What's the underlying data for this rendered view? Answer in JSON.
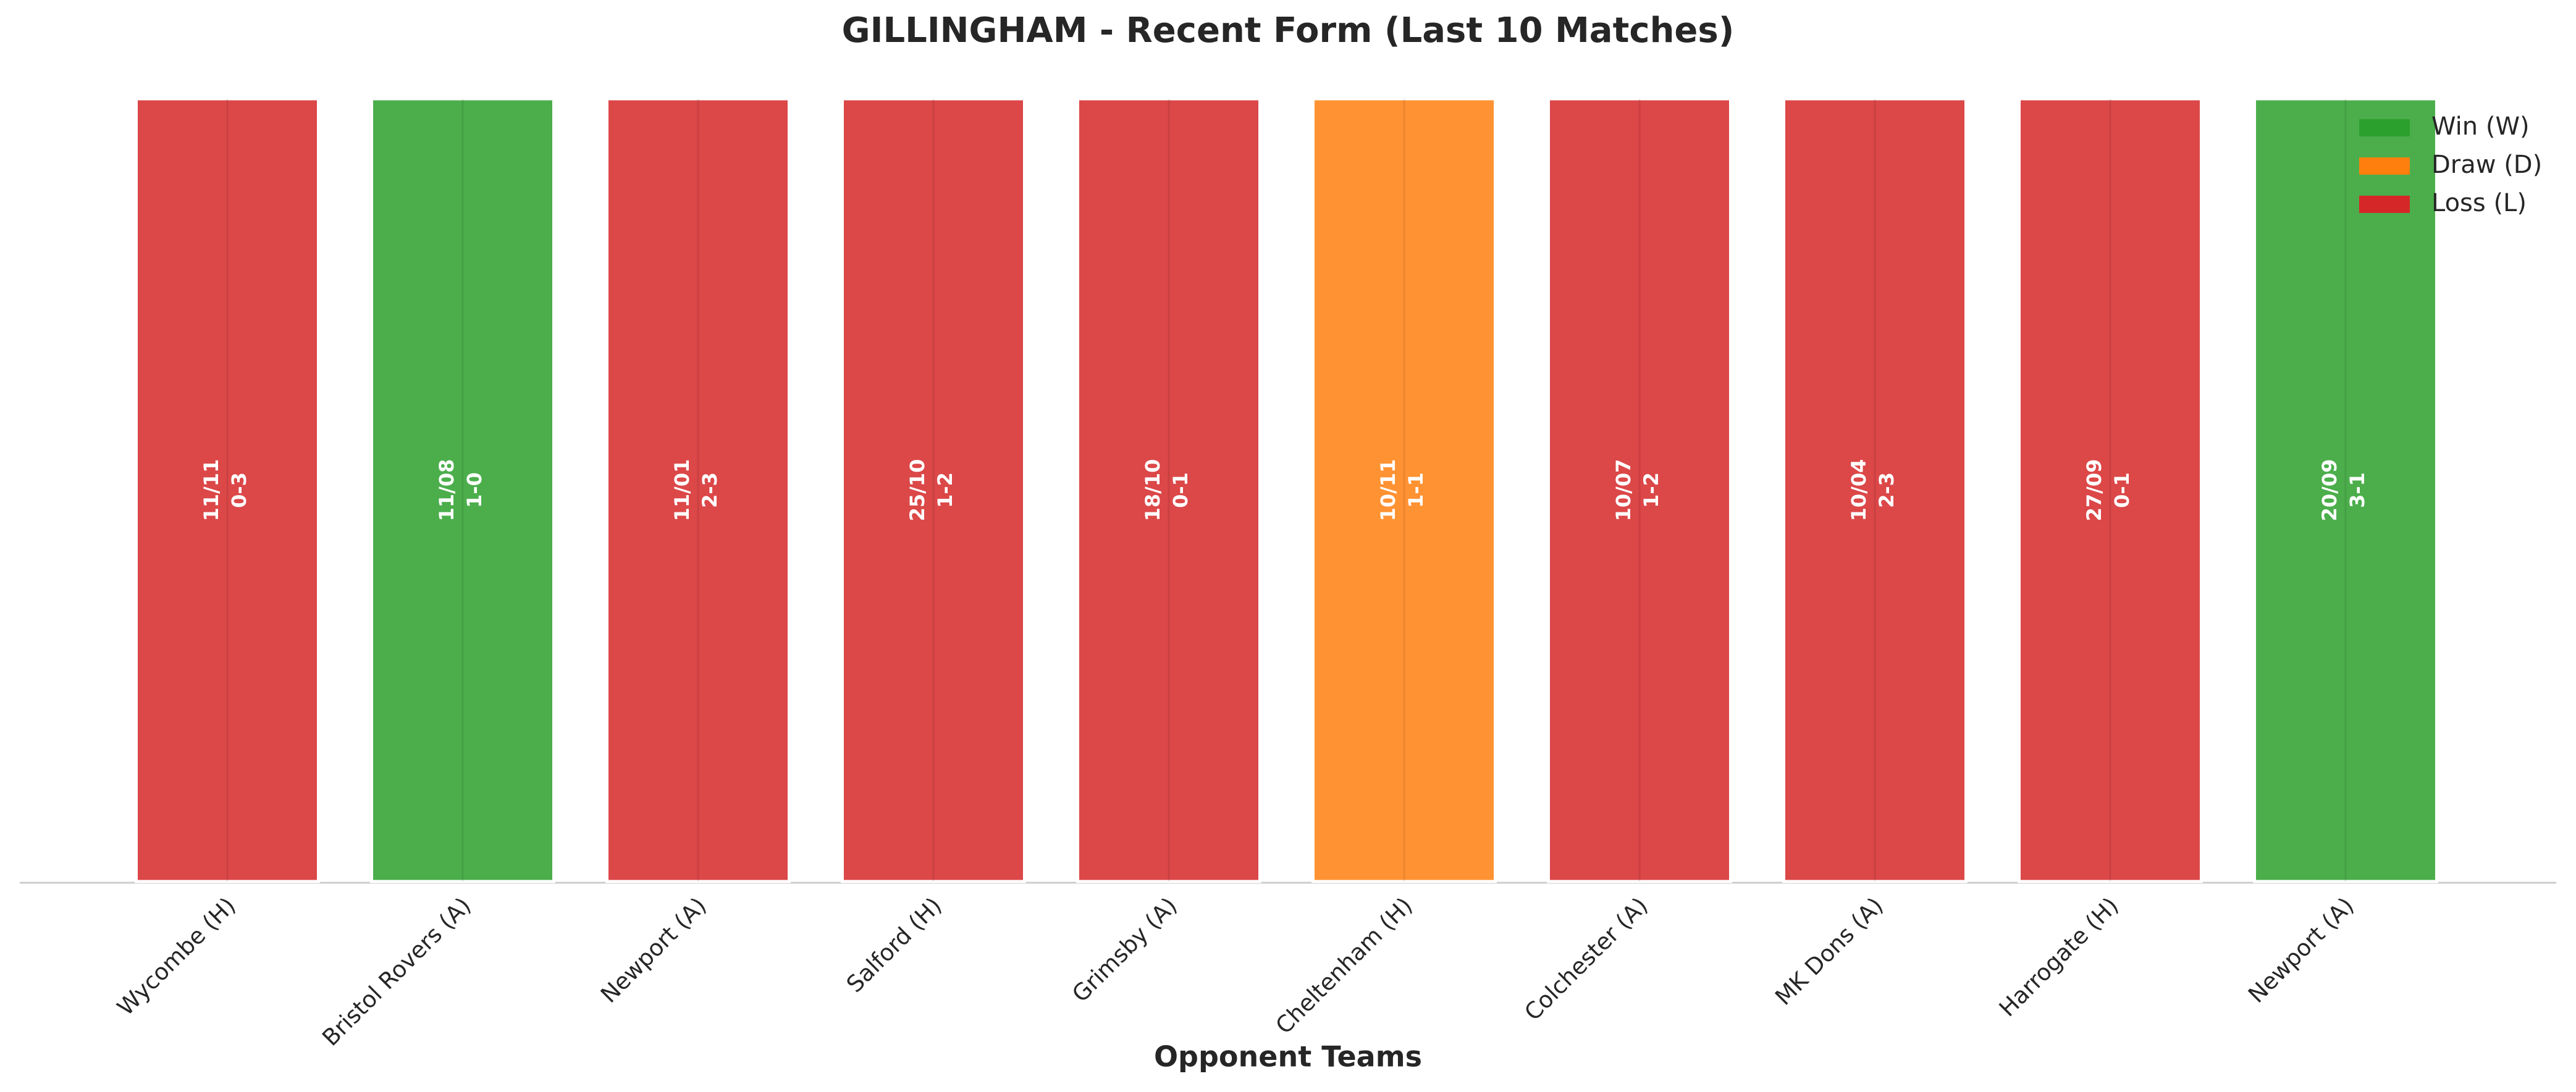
{
  "chart_data": {
    "type": "bar",
    "title": "GILLINGHAM - Recent Form (Last 10 Matches)",
    "x_label": "Opponent Teams",
    "categories": [
      "Wycombe (H)",
      "Bristol Rovers (A)",
      "Newport (A)",
      "Salford (H)",
      "Grimsby (A)",
      "Cheltenham (H)",
      "Colchester (A)",
      "MK Dons (A)",
      "Harrogate (H)",
      "Newport (A)"
    ],
    "values": [
      1,
      1,
      1,
      1,
      1,
      1,
      1,
      1,
      1,
      1
    ],
    "results": [
      "L",
      "W",
      "L",
      "L",
      "L",
      "D",
      "L",
      "L",
      "L",
      "W"
    ],
    "dates": [
      "11/11",
      "11/08",
      "11/01",
      "25/10",
      "18/10",
      "10/11",
      "10/07",
      "10/04",
      "27/09",
      "20/09"
    ],
    "scores": [
      "0-3",
      "1-0",
      "2-3",
      "1-2",
      "0-1",
      "1-1",
      "1-2",
      "2-3",
      "0-1",
      "3-1"
    ],
    "ylim": [
      0,
      1
    ],
    "legend_position": "upper right",
    "legend": [
      {
        "name": "Win (W)",
        "result": "W",
        "color": "#2ca02c"
      },
      {
        "name": "Draw (D)",
        "result": "D",
        "color": "#ff7f0e"
      },
      {
        "name": "Loss (L)",
        "result": "L",
        "color": "#d62728"
      }
    ]
  }
}
